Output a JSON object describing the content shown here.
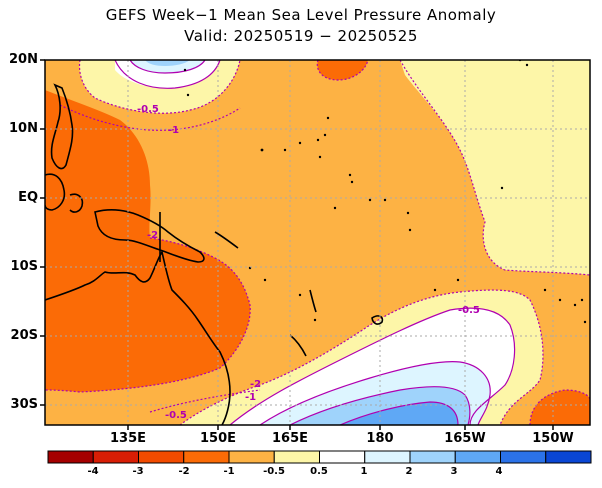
{
  "title": "GEFS Week−1 Mean Sea Level Pressure Anomaly",
  "subtitle": "Valid: 20250519 − 20250525",
  "lat_labels": [
    "20N",
    "10N",
    "EQ",
    "10S",
    "20S",
    "30S"
  ],
  "lon_labels": [
    "135E",
    "150E",
    "165E",
    "180",
    "165W",
    "150W"
  ],
  "contour_labels": [
    "-0.5",
    "-1",
    "-2",
    "-0.5",
    "-2",
    "-1",
    "-0.5"
  ],
  "colorbar": {
    "tick_labels": [
      "-4",
      "-3",
      "-2",
      "-1",
      "-0.5",
      "0.5",
      "1",
      "2",
      "3",
      "4"
    ],
    "colors": [
      "#a50000",
      "#d81e05",
      "#f24b00",
      "#fb6b06",
      "#fdb244",
      "#fdf6a8",
      "#ffffff",
      "#ddf5ff",
      "#9fd3fb",
      "#5fa8f5",
      "#2b72e8",
      "#0a46d4"
    ]
  },
  "palette": {
    "ocean_default": "#fdb244",
    "strong_neg": "#fb6b06",
    "weak_neg": "#fdf6a8",
    "neutral": "#ffffff",
    "pos1": "#ddf5ff",
    "pos2": "#9fd3fb",
    "pos3": "#5fa8f5",
    "contour": "#b000b0",
    "grid": "#aaaaaa"
  }
}
